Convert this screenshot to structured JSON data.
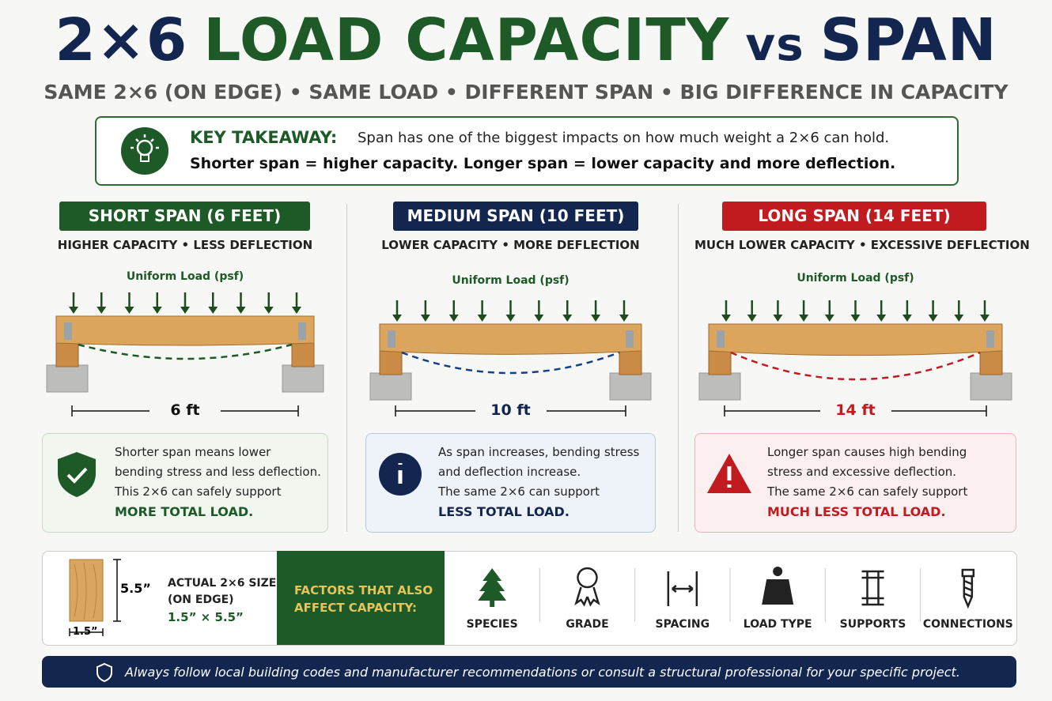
{
  "header": {
    "title_parts": [
      "2×6",
      "LOAD CAPACITY",
      "vs",
      "SPAN"
    ],
    "subtitle": "SAME 2×6 (ON EDGE) • SAME LOAD • DIFFERENT SPAN • BIG DIFFERENCE IN CAPACITY"
  },
  "takeaway": {
    "label": "KEY TAKEAWAY:",
    "text": "Span has one of the biggest impacts on how much weight a 2×6 can hold.",
    "emphasis": "Shorter span = higher capacity. Longer span = lower capacity and more deflection."
  },
  "panels": [
    {
      "heading": "SHORT SPAN (6 FEET)",
      "subheading": "HIGHER CAPACITY • LESS DEFLECTION",
      "load_label": "Uniform Load (psf)",
      "span_label": "6 ft",
      "note_lines": [
        "Shorter span means lower",
        "bending stress and less deflection.",
        "This 2×6 can safely support"
      ],
      "conclusion": "MORE TOTAL LOAD."
    },
    {
      "heading": "MEDIUM SPAN (10 FEET)",
      "subheading": "LOWER CAPACITY • MORE DEFLECTION",
      "load_label": "Uniform Load (psf)",
      "span_label": "10 ft",
      "note_lines": [
        "As span increases, bending stress",
        "and deflection increase.",
        "The same 2×6 can support"
      ],
      "conclusion": "LESS TOTAL LOAD."
    },
    {
      "heading": "LONG SPAN (14 FEET)",
      "subheading": "MUCH LOWER CAPACITY • EXCESSIVE DEFLECTION",
      "load_label": "Uniform Load (psf)",
      "span_label": "14 ft",
      "note_lines": [
        "Longer span causes high bending",
        "stress and excessive deflection.",
        "The same 2×6 can safely support"
      ],
      "conclusion": "MUCH LESS TOTAL LOAD."
    }
  ],
  "lumber": {
    "title": "ACTUAL 2×6 SIZE",
    "orientation": "(ON EDGE)",
    "size": "1.5” × 5.5”",
    "height_label": "5.5”",
    "width_label": "1.5”"
  },
  "factors": {
    "heading_lines": [
      "FACTORS THAT ALSO",
      "AFFECT CAPACITY:"
    ],
    "items": [
      "SPECIES",
      "GRADE",
      "SPACING",
      "LOAD TYPE",
      "SUPPORTS",
      "CONNECTIONS"
    ]
  },
  "footer": {
    "text": "Always follow local building codes and manufacturer recommendations or consult a structural professional for your specific project."
  }
}
